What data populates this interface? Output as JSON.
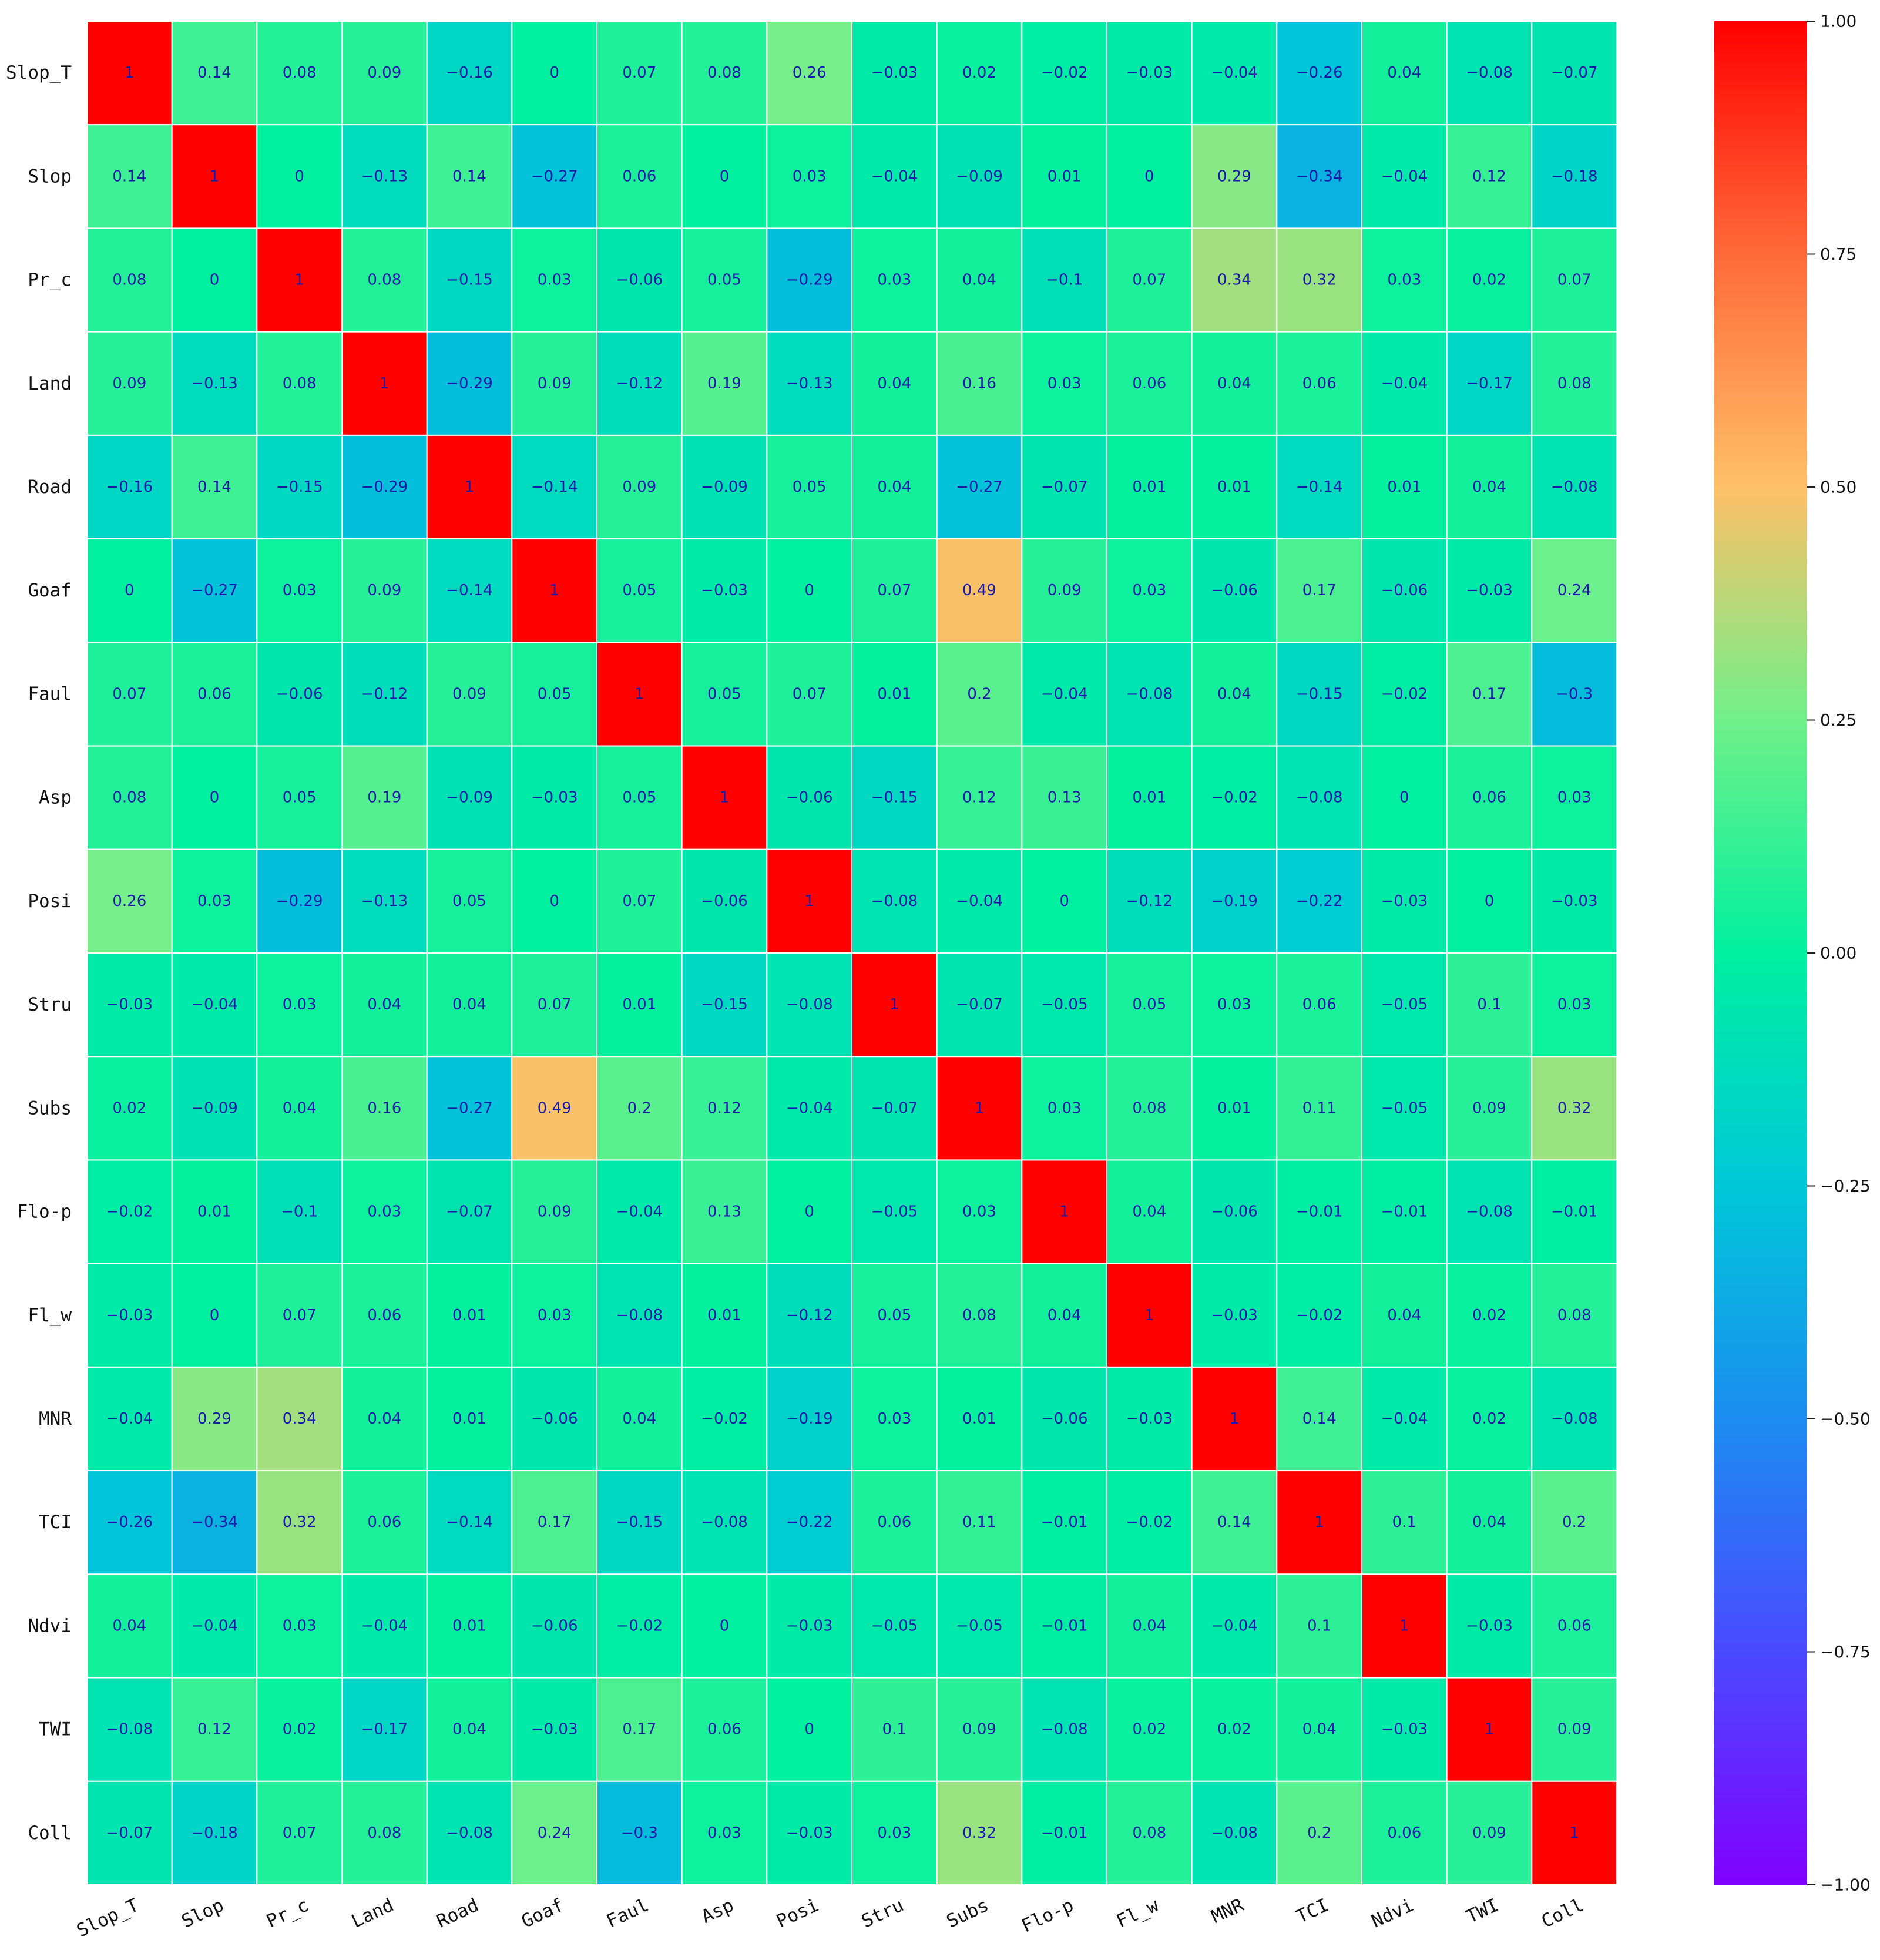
{
  "chart_data": {
    "type": "heatmap",
    "title": "",
    "xlabel": "",
    "ylabel": "",
    "variables": [
      "Slop_T",
      "Slop",
      "Pr_c",
      "Land",
      "Road",
      "Goaf",
      "Faul",
      "Asp",
      "Posi",
      "Stru",
      "Subs",
      "Flo-p",
      "Fl_w",
      "MNR",
      "TCI",
      "Ndvi",
      "TWI",
      "Coll"
    ],
    "matrix": [
      [
        1,
        0.14,
        0.08,
        0.09,
        -0.16,
        0,
        0.07,
        0.08,
        0.26,
        -0.03,
        0.02,
        -0.02,
        -0.03,
        -0.04,
        -0.26,
        0.04,
        -0.08,
        -0.07
      ],
      [
        0.14,
        1,
        0,
        -0.13,
        0.14,
        -0.27,
        0.06,
        0,
        0.03,
        -0.04,
        -0.09,
        0.01,
        0,
        0.29,
        -0.34,
        -0.04,
        0.12,
        -0.18
      ],
      [
        0.08,
        0,
        1,
        0.08,
        -0.15,
        0.03,
        -0.06,
        0.05,
        -0.29,
        0.03,
        0.04,
        -0.1,
        0.07,
        0.34,
        0.32,
        0.03,
        0.02,
        0.07
      ],
      [
        0.09,
        -0.13,
        0.08,
        1,
        -0.29,
        0.09,
        -0.12,
        0.19,
        -0.13,
        0.04,
        0.16,
        0.03,
        0.06,
        0.04,
        0.06,
        -0.04,
        -0.17,
        0.08
      ],
      [
        -0.16,
        0.14,
        -0.15,
        -0.29,
        1,
        -0.14,
        0.09,
        -0.09,
        0.05,
        0.04,
        -0.27,
        -0.07,
        0.01,
        0.01,
        -0.14,
        0.01,
        0.04,
        -0.08
      ],
      [
        0,
        -0.27,
        0.03,
        0.09,
        -0.14,
        1,
        0.05,
        -0.03,
        0,
        0.07,
        0.49,
        0.09,
        0.03,
        -0.06,
        0.17,
        -0.06,
        -0.03,
        0.24
      ],
      [
        0.07,
        0.06,
        -0.06,
        -0.12,
        0.09,
        0.05,
        1,
        0.05,
        0.07,
        0.01,
        0.2,
        -0.04,
        -0.08,
        0.04,
        -0.15,
        -0.02,
        0.17,
        -0.3
      ],
      [
        0.08,
        0,
        0.05,
        0.19,
        -0.09,
        -0.03,
        0.05,
        1,
        -0.06,
        -0.15,
        0.12,
        0.13,
        0.01,
        -0.02,
        -0.08,
        0,
        0.06,
        0.03
      ],
      [
        0.26,
        0.03,
        -0.29,
        -0.13,
        0.05,
        0,
        0.07,
        -0.06,
        1,
        -0.08,
        -0.04,
        0,
        -0.12,
        -0.19,
        -0.22,
        -0.03,
        0,
        -0.03
      ],
      [
        -0.03,
        -0.04,
        0.03,
        0.04,
        0.04,
        0.07,
        0.01,
        -0.15,
        -0.08,
        1,
        -0.07,
        -0.05,
        0.05,
        0.03,
        0.06,
        -0.05,
        0.1,
        0.03
      ],
      [
        0.02,
        -0.09,
        0.04,
        0.16,
        -0.27,
        0.49,
        0.2,
        0.12,
        -0.04,
        -0.07,
        1,
        0.03,
        0.08,
        0.01,
        0.11,
        -0.05,
        0.09,
        0.32
      ],
      [
        -0.02,
        0.01,
        -0.1,
        0.03,
        -0.07,
        0.09,
        -0.04,
        0.13,
        0,
        -0.05,
        0.03,
        1,
        0.04,
        -0.06,
        -0.01,
        -0.01,
        -0.08,
        -0.01
      ],
      [
        -0.03,
        0,
        0.07,
        0.06,
        0.01,
        0.03,
        -0.08,
        0.01,
        -0.12,
        0.05,
        0.08,
        0.04,
        1,
        -0.03,
        -0.02,
        0.04,
        0.02,
        0.08
      ],
      [
        -0.04,
        0.29,
        0.34,
        0.04,
        0.01,
        -0.06,
        0.04,
        -0.02,
        -0.19,
        0.03,
        0.01,
        -0.06,
        -0.03,
        1,
        0.14,
        -0.04,
        0.02,
        -0.08
      ],
      [
        -0.26,
        -0.34,
        0.32,
        0.06,
        -0.14,
        0.17,
        -0.15,
        -0.08,
        -0.22,
        0.06,
        0.11,
        -0.01,
        -0.02,
        0.14,
        1,
        0.1,
        0.04,
        0.2
      ],
      [
        0.04,
        -0.04,
        0.03,
        -0.04,
        0.01,
        -0.06,
        -0.02,
        0,
        -0.03,
        -0.05,
        -0.05,
        -0.01,
        0.04,
        -0.04,
        0.1,
        1,
        -0.03,
        0.06
      ],
      [
        -0.08,
        0.12,
        0.02,
        -0.17,
        0.04,
        -0.03,
        0.17,
        0.06,
        0,
        0.1,
        0.09,
        -0.08,
        0.02,
        0.02,
        0.04,
        -0.03,
        1,
        0.09
      ],
      [
        -0.07,
        -0.18,
        0.07,
        0.08,
        -0.08,
        0.24,
        -0.3,
        0.03,
        -0.03,
        0.03,
        0.32,
        -0.01,
        0.08,
        -0.08,
        0.2,
        0.06,
        0.09,
        1
      ]
    ],
    "colorscale": "rainbow",
    "vmin": -1,
    "vmax": 1,
    "colorbar_ticks": [
      "1.00",
      "0.75",
      "0.50",
      "0.25",
      "0.00",
      "−0.25",
      "−0.50",
      "−0.75",
      "−1.00"
    ],
    "colorbar_tick_values": [
      1,
      0.75,
      0.5,
      0.25,
      0,
      -0.25,
      -0.5,
      -0.75,
      -1
    ],
    "colorbar_position": "right",
    "grid": false
  }
}
